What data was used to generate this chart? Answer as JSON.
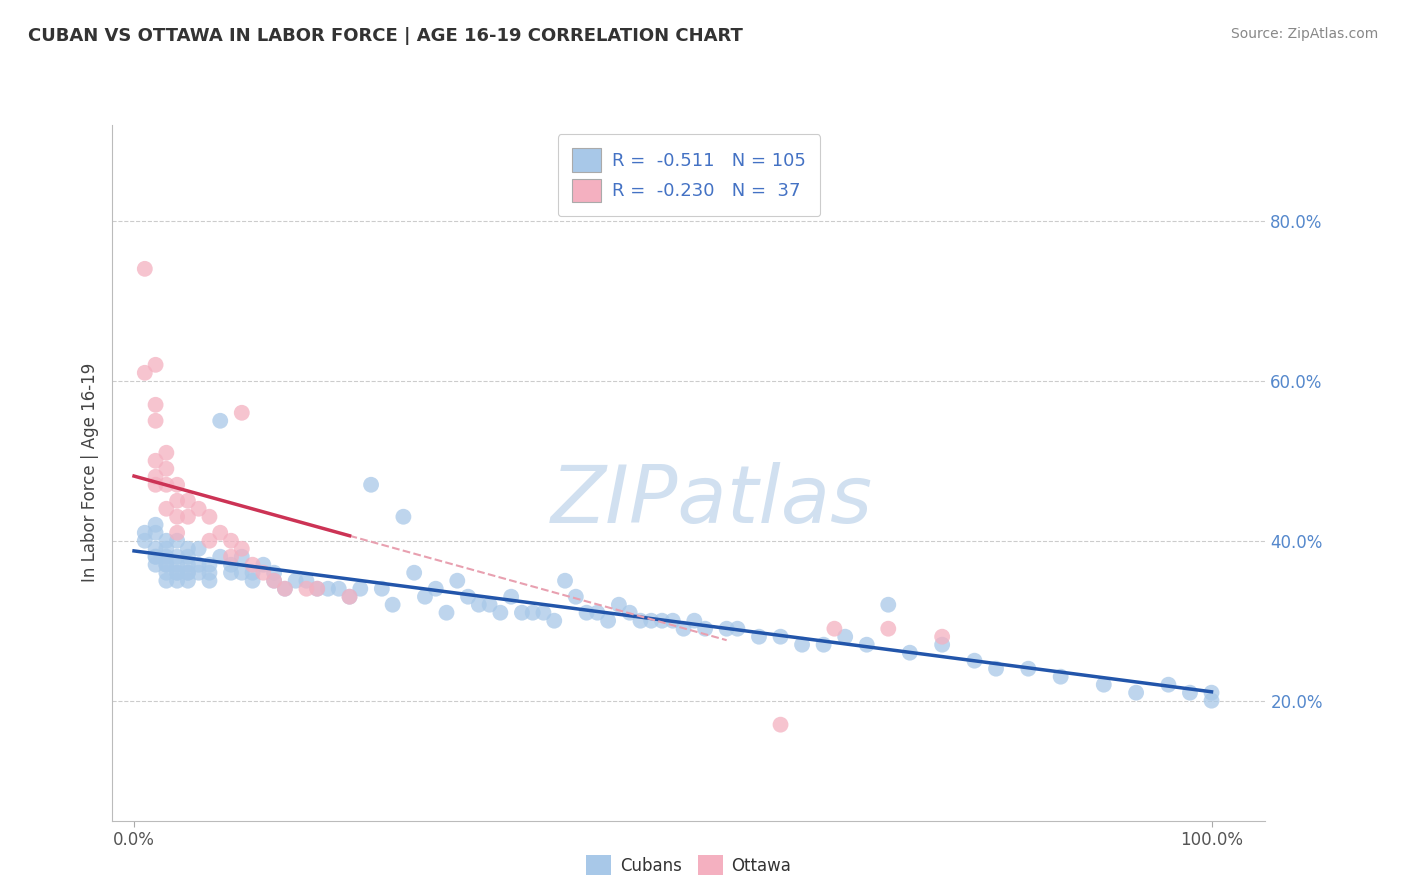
{
  "title": "CUBAN VS OTTAWA IN LABOR FORCE | AGE 16-19 CORRELATION CHART",
  "source": "Source: ZipAtlas.com",
  "ylabel": "In Labor Force | Age 16-19",
  "ytick_vals": [
    0.2,
    0.4,
    0.6,
    0.8
  ],
  "ytick_labels": [
    "20.0%",
    "40.0%",
    "60.0%",
    "80.0%"
  ],
  "xtick_vals": [
    0.0,
    1.0
  ],
  "xtick_labels": [
    "0.0%",
    "100.0%"
  ],
  "xlim": [
    -0.02,
    1.05
  ],
  "ylim": [
    0.05,
    0.92
  ],
  "cubans_color": "#a8c8e8",
  "ottawa_color": "#f4b0c0",
  "cubans_line_color": "#2255aa",
  "ottawa_line_color": "#cc3355",
  "ottawa_dash_color": "#e8a0b0",
  "watermark_text": "ZIPatlas",
  "watermark_color": "#ccddef",
  "background_color": "#ffffff",
  "grid_color": "#cccccc",
  "title_color": "#333333",
  "ytick_color": "#5588cc",
  "xtick_color": "#555555",
  "legend_border_color": "#cccccc",
  "legend_text_color": "#4472c4",
  "cubans_legend_color": "#a8c8e8",
  "ottawa_legend_color": "#f4b0c0",
  "cubans_x": [
    0.01,
    0.01,
    0.02,
    0.02,
    0.02,
    0.02,
    0.02,
    0.02,
    0.03,
    0.03,
    0.03,
    0.03,
    0.03,
    0.03,
    0.03,
    0.04,
    0.04,
    0.04,
    0.04,
    0.04,
    0.04,
    0.05,
    0.05,
    0.05,
    0.05,
    0.05,
    0.05,
    0.06,
    0.06,
    0.06,
    0.07,
    0.07,
    0.07,
    0.08,
    0.08,
    0.09,
    0.09,
    0.1,
    0.1,
    0.11,
    0.11,
    0.12,
    0.13,
    0.13,
    0.14,
    0.15,
    0.16,
    0.17,
    0.18,
    0.19,
    0.2,
    0.21,
    0.22,
    0.23,
    0.24,
    0.25,
    0.26,
    0.27,
    0.28,
    0.29,
    0.3,
    0.31,
    0.32,
    0.33,
    0.34,
    0.35,
    0.36,
    0.37,
    0.38,
    0.39,
    0.4,
    0.41,
    0.42,
    0.43,
    0.44,
    0.45,
    0.46,
    0.47,
    0.48,
    0.49,
    0.5,
    0.51,
    0.52,
    0.53,
    0.55,
    0.56,
    0.58,
    0.6,
    0.62,
    0.64,
    0.66,
    0.68,
    0.7,
    0.72,
    0.75,
    0.78,
    0.8,
    0.83,
    0.86,
    0.9,
    0.93,
    0.96,
    0.98,
    1.0,
    1.0
  ],
  "cubans_y": [
    0.4,
    0.41,
    0.39,
    0.38,
    0.37,
    0.41,
    0.42,
    0.38,
    0.4,
    0.39,
    0.37,
    0.36,
    0.38,
    0.37,
    0.35,
    0.4,
    0.38,
    0.37,
    0.36,
    0.35,
    0.36,
    0.39,
    0.38,
    0.36,
    0.35,
    0.37,
    0.36,
    0.37,
    0.39,
    0.36,
    0.37,
    0.36,
    0.35,
    0.55,
    0.38,
    0.37,
    0.36,
    0.38,
    0.36,
    0.36,
    0.35,
    0.37,
    0.36,
    0.35,
    0.34,
    0.35,
    0.35,
    0.34,
    0.34,
    0.34,
    0.33,
    0.34,
    0.47,
    0.34,
    0.32,
    0.43,
    0.36,
    0.33,
    0.34,
    0.31,
    0.35,
    0.33,
    0.32,
    0.32,
    0.31,
    0.33,
    0.31,
    0.31,
    0.31,
    0.3,
    0.35,
    0.33,
    0.31,
    0.31,
    0.3,
    0.32,
    0.31,
    0.3,
    0.3,
    0.3,
    0.3,
    0.29,
    0.3,
    0.29,
    0.29,
    0.29,
    0.28,
    0.28,
    0.27,
    0.27,
    0.28,
    0.27,
    0.32,
    0.26,
    0.27,
    0.25,
    0.24,
    0.24,
    0.23,
    0.22,
    0.21,
    0.22,
    0.21,
    0.2,
    0.21
  ],
  "ottawa_x": [
    0.01,
    0.01,
    0.02,
    0.02,
    0.02,
    0.02,
    0.02,
    0.02,
    0.03,
    0.03,
    0.03,
    0.03,
    0.04,
    0.04,
    0.04,
    0.04,
    0.05,
    0.05,
    0.06,
    0.07,
    0.07,
    0.08,
    0.09,
    0.09,
    0.1,
    0.11,
    0.12,
    0.13,
    0.14,
    0.16,
    0.17,
    0.2,
    0.6,
    0.65,
    0.7,
    0.75,
    0.1
  ],
  "ottawa_y": [
    0.74,
    0.61,
    0.62,
    0.57,
    0.55,
    0.5,
    0.48,
    0.47,
    0.51,
    0.49,
    0.47,
    0.44,
    0.47,
    0.45,
    0.43,
    0.41,
    0.45,
    0.43,
    0.44,
    0.43,
    0.4,
    0.41,
    0.4,
    0.38,
    0.39,
    0.37,
    0.36,
    0.35,
    0.34,
    0.34,
    0.34,
    0.33,
    0.17,
    0.29,
    0.29,
    0.28,
    0.56
  ]
}
